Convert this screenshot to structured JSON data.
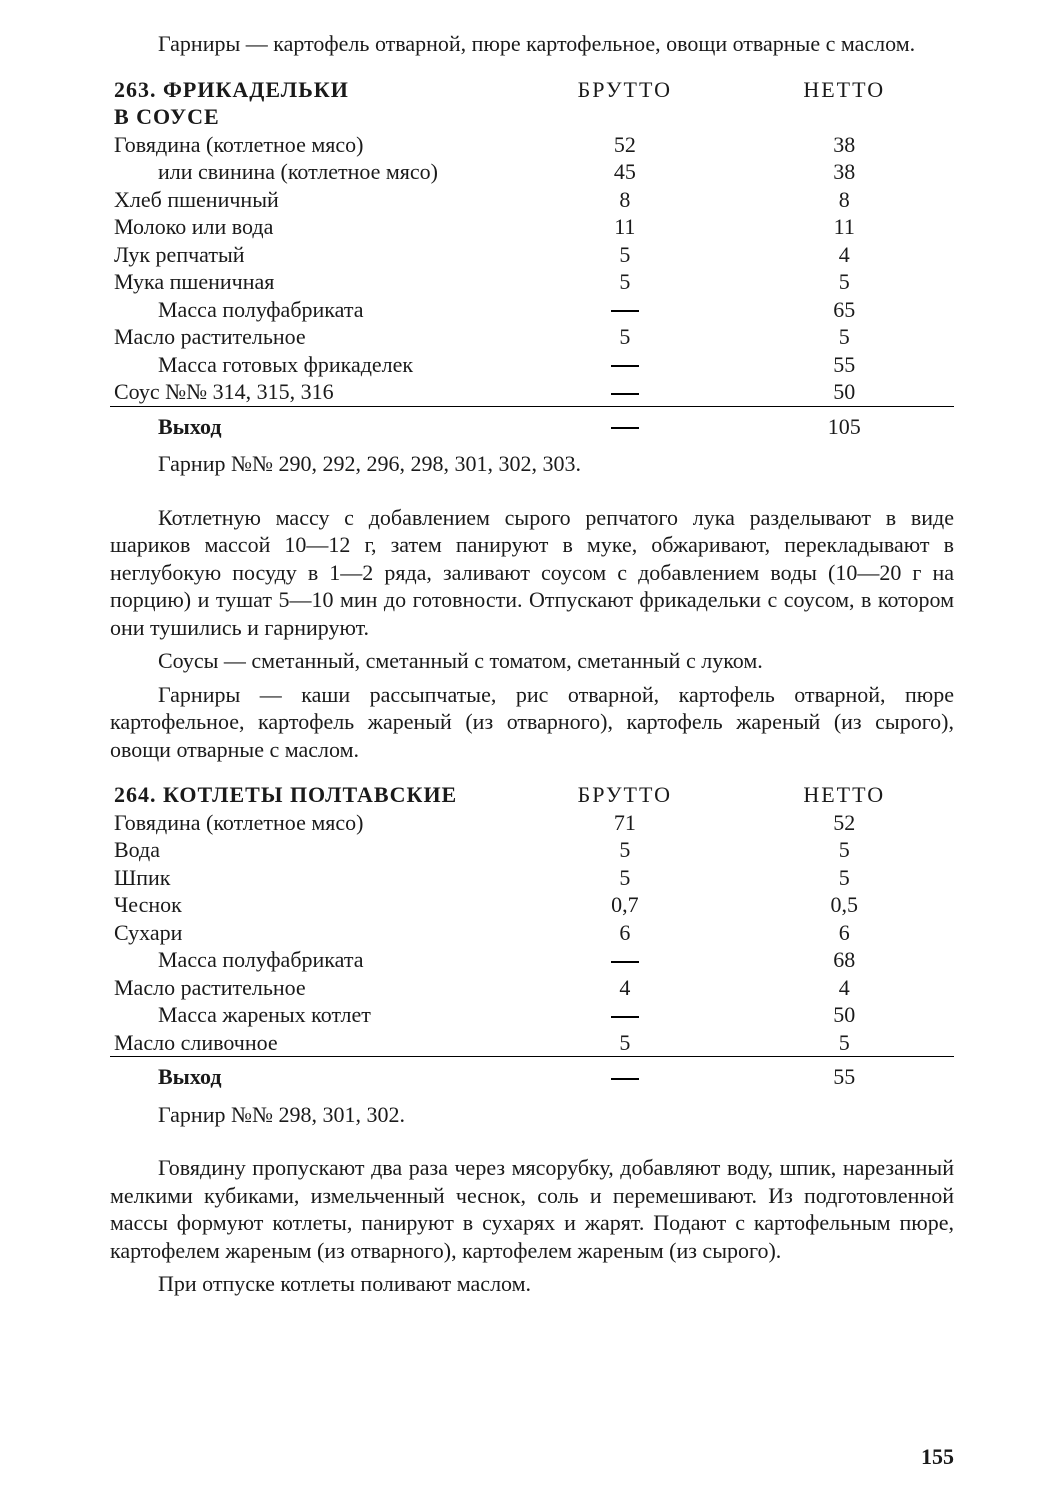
{
  "intro_paragraph": "Гарниры — картофель отварной, пюре картофельное, овощи отварные с маслом.",
  "recipe263": {
    "number": "263.",
    "title": "ФРИКАДЕЛЬКИ В СОУСЕ",
    "title_line1": "ФРИКАДЕЛЬКИ",
    "title_line2": "В СОУСЕ",
    "col_brutto": "БРУТТО",
    "col_netto": "НЕТТО",
    "rows": [
      {
        "name": "Говядина (котлетное мясо)",
        "brutto": "52",
        "netto": "38",
        "sub": false
      },
      {
        "name": "или свинина (котлетное мясо)",
        "brutto": "45",
        "netto": "38",
        "sub": true
      },
      {
        "name": "Хлеб пшеничный",
        "brutto": "8",
        "netto": "8",
        "sub": false
      },
      {
        "name": "Молоко или вода",
        "brutto": "11",
        "netto": "11",
        "sub": false
      },
      {
        "name": "Лук репчатый",
        "brutto": "5",
        "netto": "4",
        "sub": false
      },
      {
        "name": "Мука пшеничная",
        "brutto": "5",
        "netto": "5",
        "sub": false
      },
      {
        "name": "Масса полуфабриката",
        "brutto": "—",
        "netto": "65",
        "sub": true
      },
      {
        "name": "Масло растительное",
        "brutto": "5",
        "netto": "5",
        "sub": false
      },
      {
        "name": "Масса готовых фрикаделек",
        "brutto": "—",
        "netto": "55",
        "sub": true
      },
      {
        "name": "Соус №№ 314, 315, 316",
        "brutto": "—",
        "netto": "50",
        "sub": false
      }
    ],
    "output_label": "Выход",
    "output_brutto": "—",
    "output_netto": "105",
    "garnish_line": "Гарнир №№ 290, 292, 296, 298, 301, 302, 303.",
    "p1": "Котлетную массу с добавлением сырого репчатого лука разделывают в виде шариков массой 10—12 г, затем панируют в муке, обжаривают, перекладывают в неглубокую посуду в 1—2 ряда, заливают соусом с добавлением воды (10—20 г на порцию) и тушат 5—10 мин до готовности. Отпускают фрикадельки с соусом, в котором они тушились и гарнируют.",
    "p2": "Соусы — сметанный, сметанный с томатом, сметанный с луком.",
    "p3": "Гарниры — каши рассыпчатые, рис отварной, картофель отварной, пюре картофельное, картофель жареный (из отварного), картофель жареный (из сырого), овощи отварные с маслом."
  },
  "recipe264": {
    "number": "264.",
    "title": "КОТЛЕТЫ ПОЛТАВСКИЕ",
    "col_brutto": "БРУТТО",
    "col_netto": "НЕТТО",
    "rows": [
      {
        "name": "Говядина (котлетное мясо)",
        "brutto": "71",
        "netto": "52",
        "sub": false
      },
      {
        "name": "Вода",
        "brutto": "5",
        "netto": "5",
        "sub": false
      },
      {
        "name": "Шпик",
        "brutto": "5",
        "netto": "5",
        "sub": false
      },
      {
        "name": "Чеснок",
        "brutto": "0,7",
        "netto": "0,5",
        "sub": false
      },
      {
        "name": "Сухари",
        "brutto": "6",
        "netto": "6",
        "sub": false
      },
      {
        "name": "Масса полуфабриката",
        "brutto": "—",
        "netto": "68",
        "sub": true
      },
      {
        "name": "Масло растительное",
        "brutto": "4",
        "netto": "4",
        "sub": false
      },
      {
        "name": "Масса жареных котлет",
        "brutto": "—",
        "netto": "50",
        "sub": true
      },
      {
        "name": "Масло сливочное",
        "brutto": "5",
        "netto": "5",
        "sub": false
      }
    ],
    "output_label": "Выход",
    "output_brutto": "—",
    "output_netto": "55",
    "garnish_line": "Гарнир №№ 298, 301, 302.",
    "p1": "Говядину пропускают два раза через мясорубку, добавляют воду, шпик, нарезанный мелкими кубиками, измельченный чеснок, соль и перемешивают. Из подготовленной массы формуют котлеты, панируют в сухарях и жарят. Подают с картофельным пюре, картофелем жареным (из отварного), картофелем жареным (из сырого).",
    "p2": "При отпуске котлеты поливают маслом."
  },
  "page_number": "155"
}
